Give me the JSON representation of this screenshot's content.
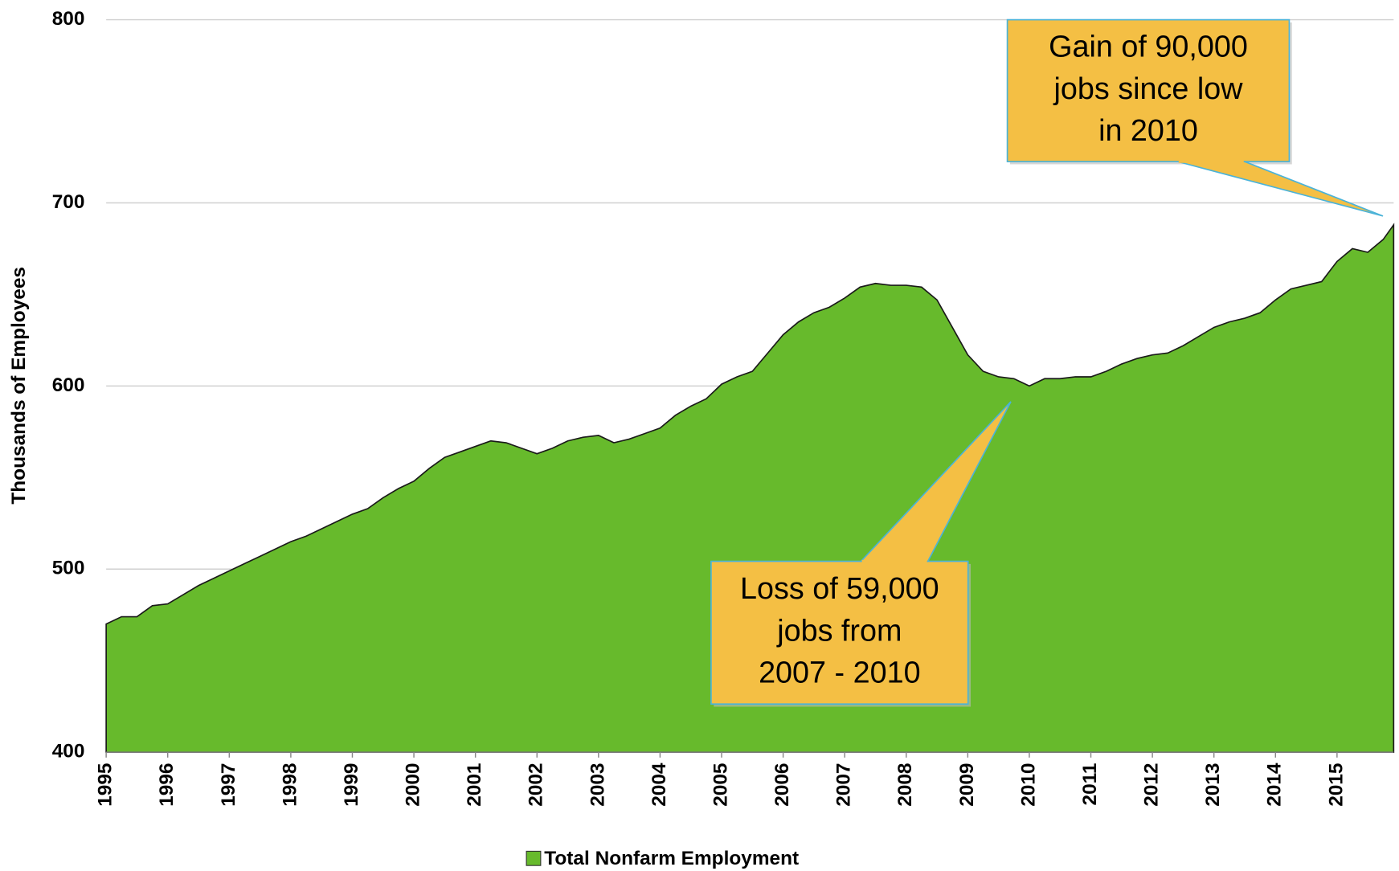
{
  "chart_data": {
    "type": "area",
    "ylabel": "Thousands of Employees",
    "x": [
      1995,
      1995.25,
      1995.5,
      1995.75,
      1996,
      1996.25,
      1996.5,
      1996.75,
      1997,
      1997.25,
      1997.5,
      1997.75,
      1998,
      1998.25,
      1998.5,
      1998.75,
      1999,
      1999.25,
      1999.5,
      1999.75,
      2000,
      2000.25,
      2000.5,
      2000.75,
      2001,
      2001.25,
      2001.5,
      2001.75,
      2002,
      2002.25,
      2002.5,
      2002.75,
      2003,
      2003.25,
      2003.5,
      2003.75,
      2004,
      2004.25,
      2004.5,
      2004.75,
      2005,
      2005.25,
      2005.5,
      2005.75,
      2006,
      2006.25,
      2006.5,
      2006.75,
      2007,
      2007.25,
      2007.5,
      2007.75,
      2008,
      2008.25,
      2008.5,
      2008.75,
      2009,
      2009.25,
      2009.5,
      2009.75,
      2010,
      2010.25,
      2010.5,
      2010.75,
      2011,
      2011.25,
      2011.5,
      2011.75,
      2012,
      2012.25,
      2012.5,
      2012.75,
      2013,
      2013.25,
      2013.5,
      2013.75,
      2014,
      2014.25,
      2014.5,
      2014.75,
      2015,
      2015.25,
      2015.5,
      2015.75,
      2015.92
    ],
    "series": [
      {
        "name": "Total Nonfarm Employment",
        "color": "#67ba2c",
        "values": [
          470,
          474,
          474,
          480,
          481,
          486,
          491,
          495,
          499,
          503,
          507,
          511,
          515,
          518,
          522,
          526,
          530,
          533,
          539,
          544,
          548,
          555,
          561,
          564,
          567,
          570,
          569,
          566,
          563,
          566,
          570,
          572,
          573,
          569,
          571,
          574,
          577,
          584,
          589,
          593,
          601,
          605,
          608,
          618,
          628,
          635,
          640,
          643,
          648,
          654,
          656,
          655,
          655,
          654,
          647,
          632,
          617,
          608,
          605,
          604,
          600,
          604,
          604,
          605,
          605,
          608,
          612,
          615,
          617,
          618,
          622,
          627,
          632,
          635,
          637,
          640,
          647,
          653,
          655,
          657,
          668,
          675,
          673,
          680,
          688
        ]
      }
    ],
    "xlim": [
      1995,
      2015.92
    ],
    "xticks": [
      1995,
      1996,
      1997,
      1998,
      1999,
      2000,
      2001,
      2002,
      2003,
      2004,
      2005,
      2006,
      2007,
      2008,
      2009,
      2010,
      2011,
      2012,
      2013,
      2014,
      2015
    ],
    "ylim": [
      400,
      800
    ],
    "yticks": [
      400,
      500,
      600,
      700,
      800
    ],
    "grid": true,
    "legend": "bottom",
    "annotations": [
      {
        "lines": [
          "Gain of 90,000",
          "jobs since low",
          "in 2010"
        ]
      },
      {
        "lines": [
          "Loss of 59,000",
          "jobs from",
          "2007 - 2010"
        ]
      }
    ]
  }
}
